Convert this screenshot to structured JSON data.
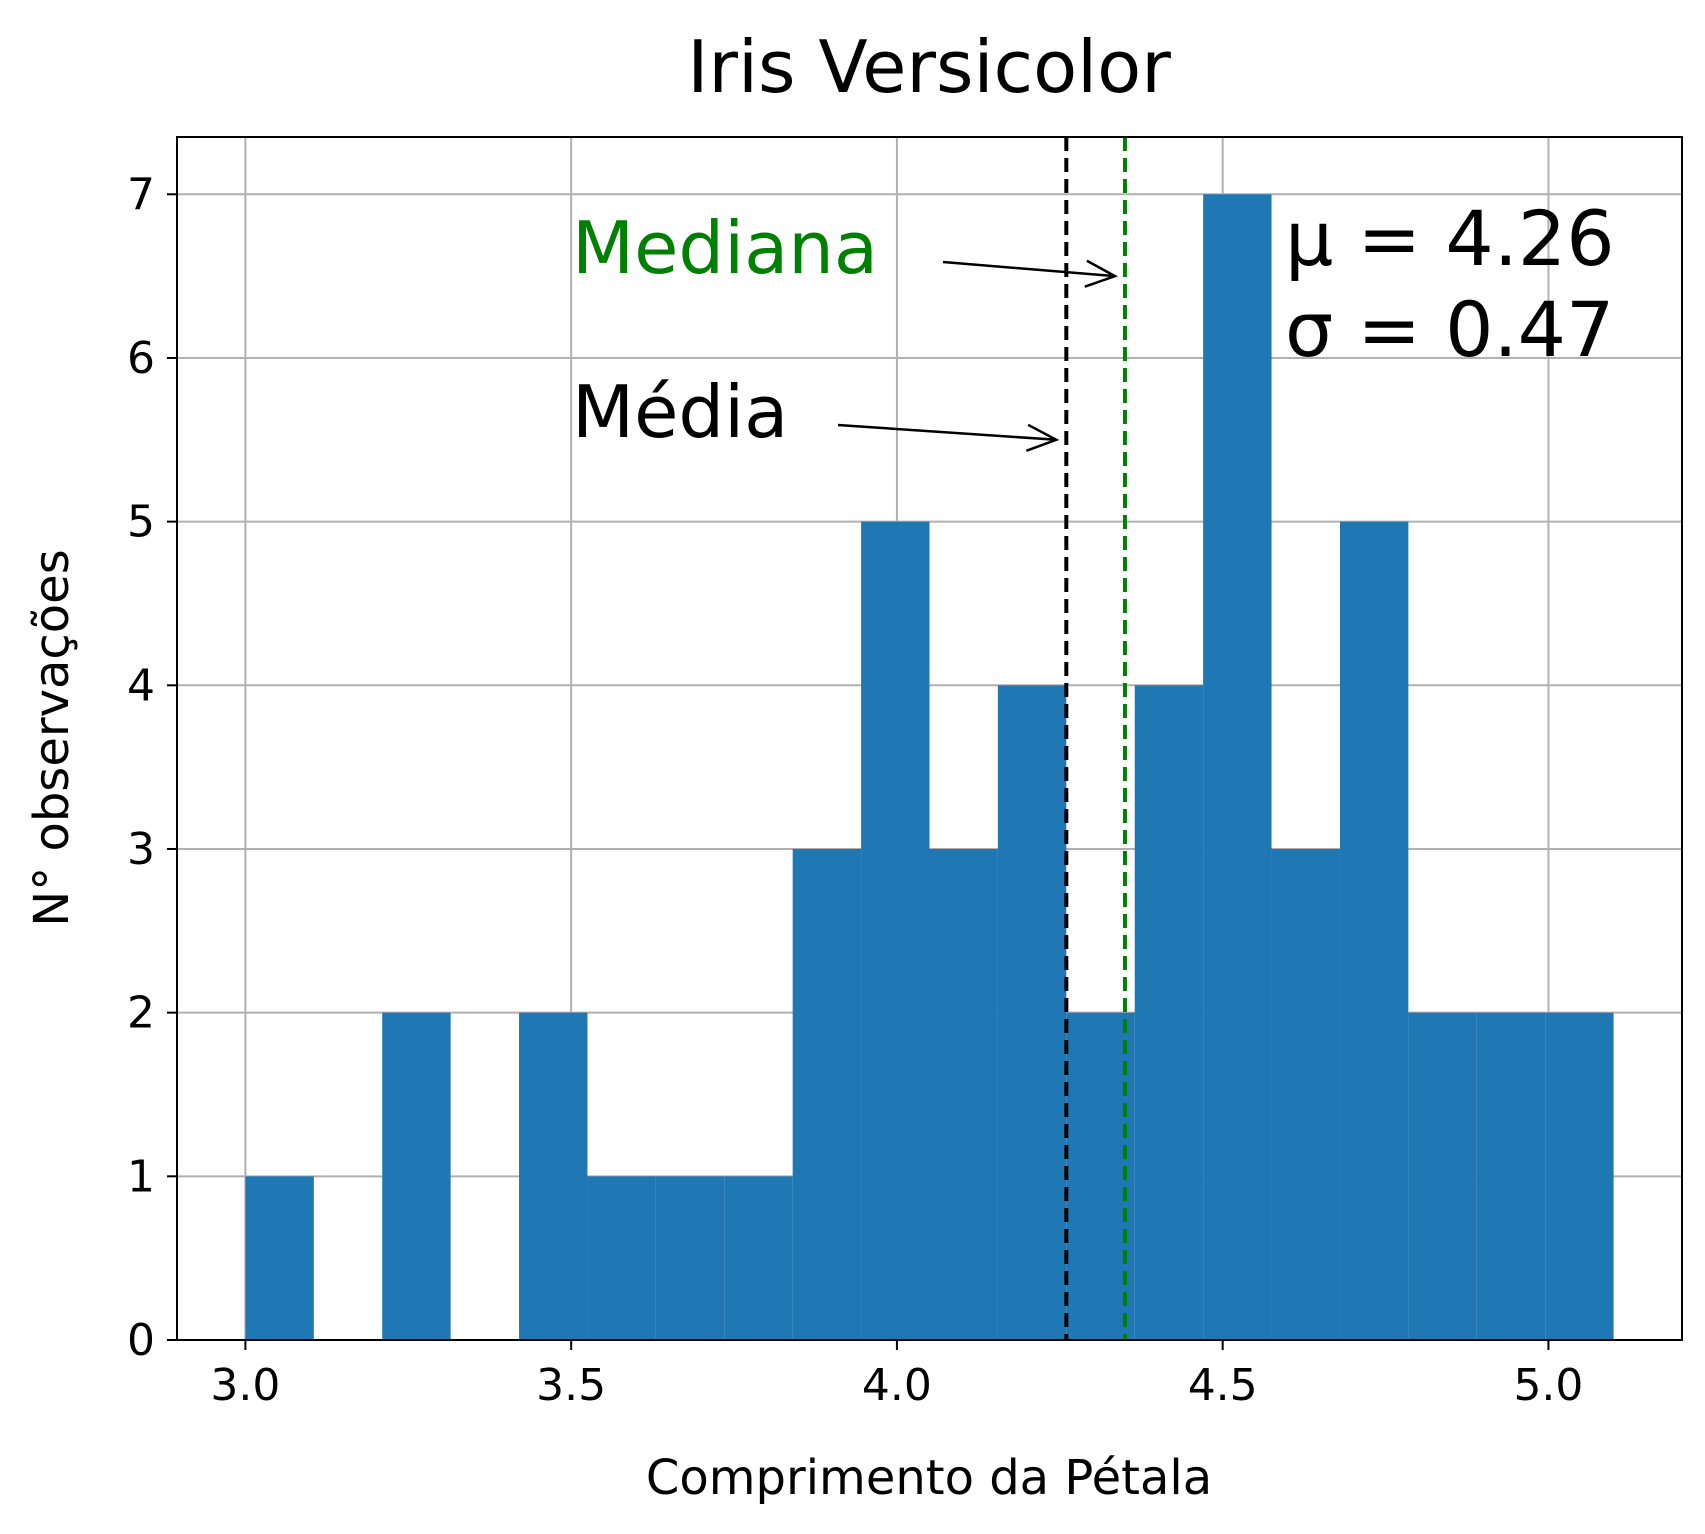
{
  "chart_data": {
    "type": "bar",
    "title": "Iris Versicolor",
    "xlabel": "Comprimento da Pétala",
    "ylabel": "N° observações",
    "xlim": [
      2.895,
      5.205
    ],
    "ylim": [
      0,
      7.35
    ],
    "xticks": [
      3.0,
      3.5,
      4.0,
      4.5,
      5.0
    ],
    "xtick_labels": [
      "3.0",
      "3.5",
      "4.0",
      "4.5",
      "5.0"
    ],
    "yticks": [
      0,
      1,
      2,
      3,
      4,
      5,
      6,
      7
    ],
    "ytick_labels": [
      "0",
      "1",
      "2",
      "3",
      "4",
      "5",
      "6",
      "7"
    ],
    "grid": true,
    "bar_color": "#1f77b4",
    "bins": [
      3.0,
      3.105,
      3.21,
      3.315,
      3.42,
      3.525,
      3.63,
      3.735,
      3.84,
      3.945,
      4.05,
      4.155,
      4.26,
      4.365,
      4.47,
      4.575,
      4.68,
      4.785,
      4.89,
      4.995,
      5.1
    ],
    "counts": [
      1,
      0,
      2,
      0,
      2,
      1,
      1,
      1,
      3,
      5,
      3,
      4,
      2,
      4,
      7,
      3,
      5,
      2,
      2,
      2
    ],
    "mean": 4.26,
    "median": 4.35,
    "mean_line_color": "#000000",
    "median_line_color": "#008000",
    "annotations": {
      "median_label": "Mediana",
      "median_label_color": "#008000",
      "mean_label": "Média",
      "mean_label_color": "#000000"
    },
    "stats_text": {
      "mu": "μ = 4.26",
      "sigma": "σ = 0.47"
    }
  }
}
